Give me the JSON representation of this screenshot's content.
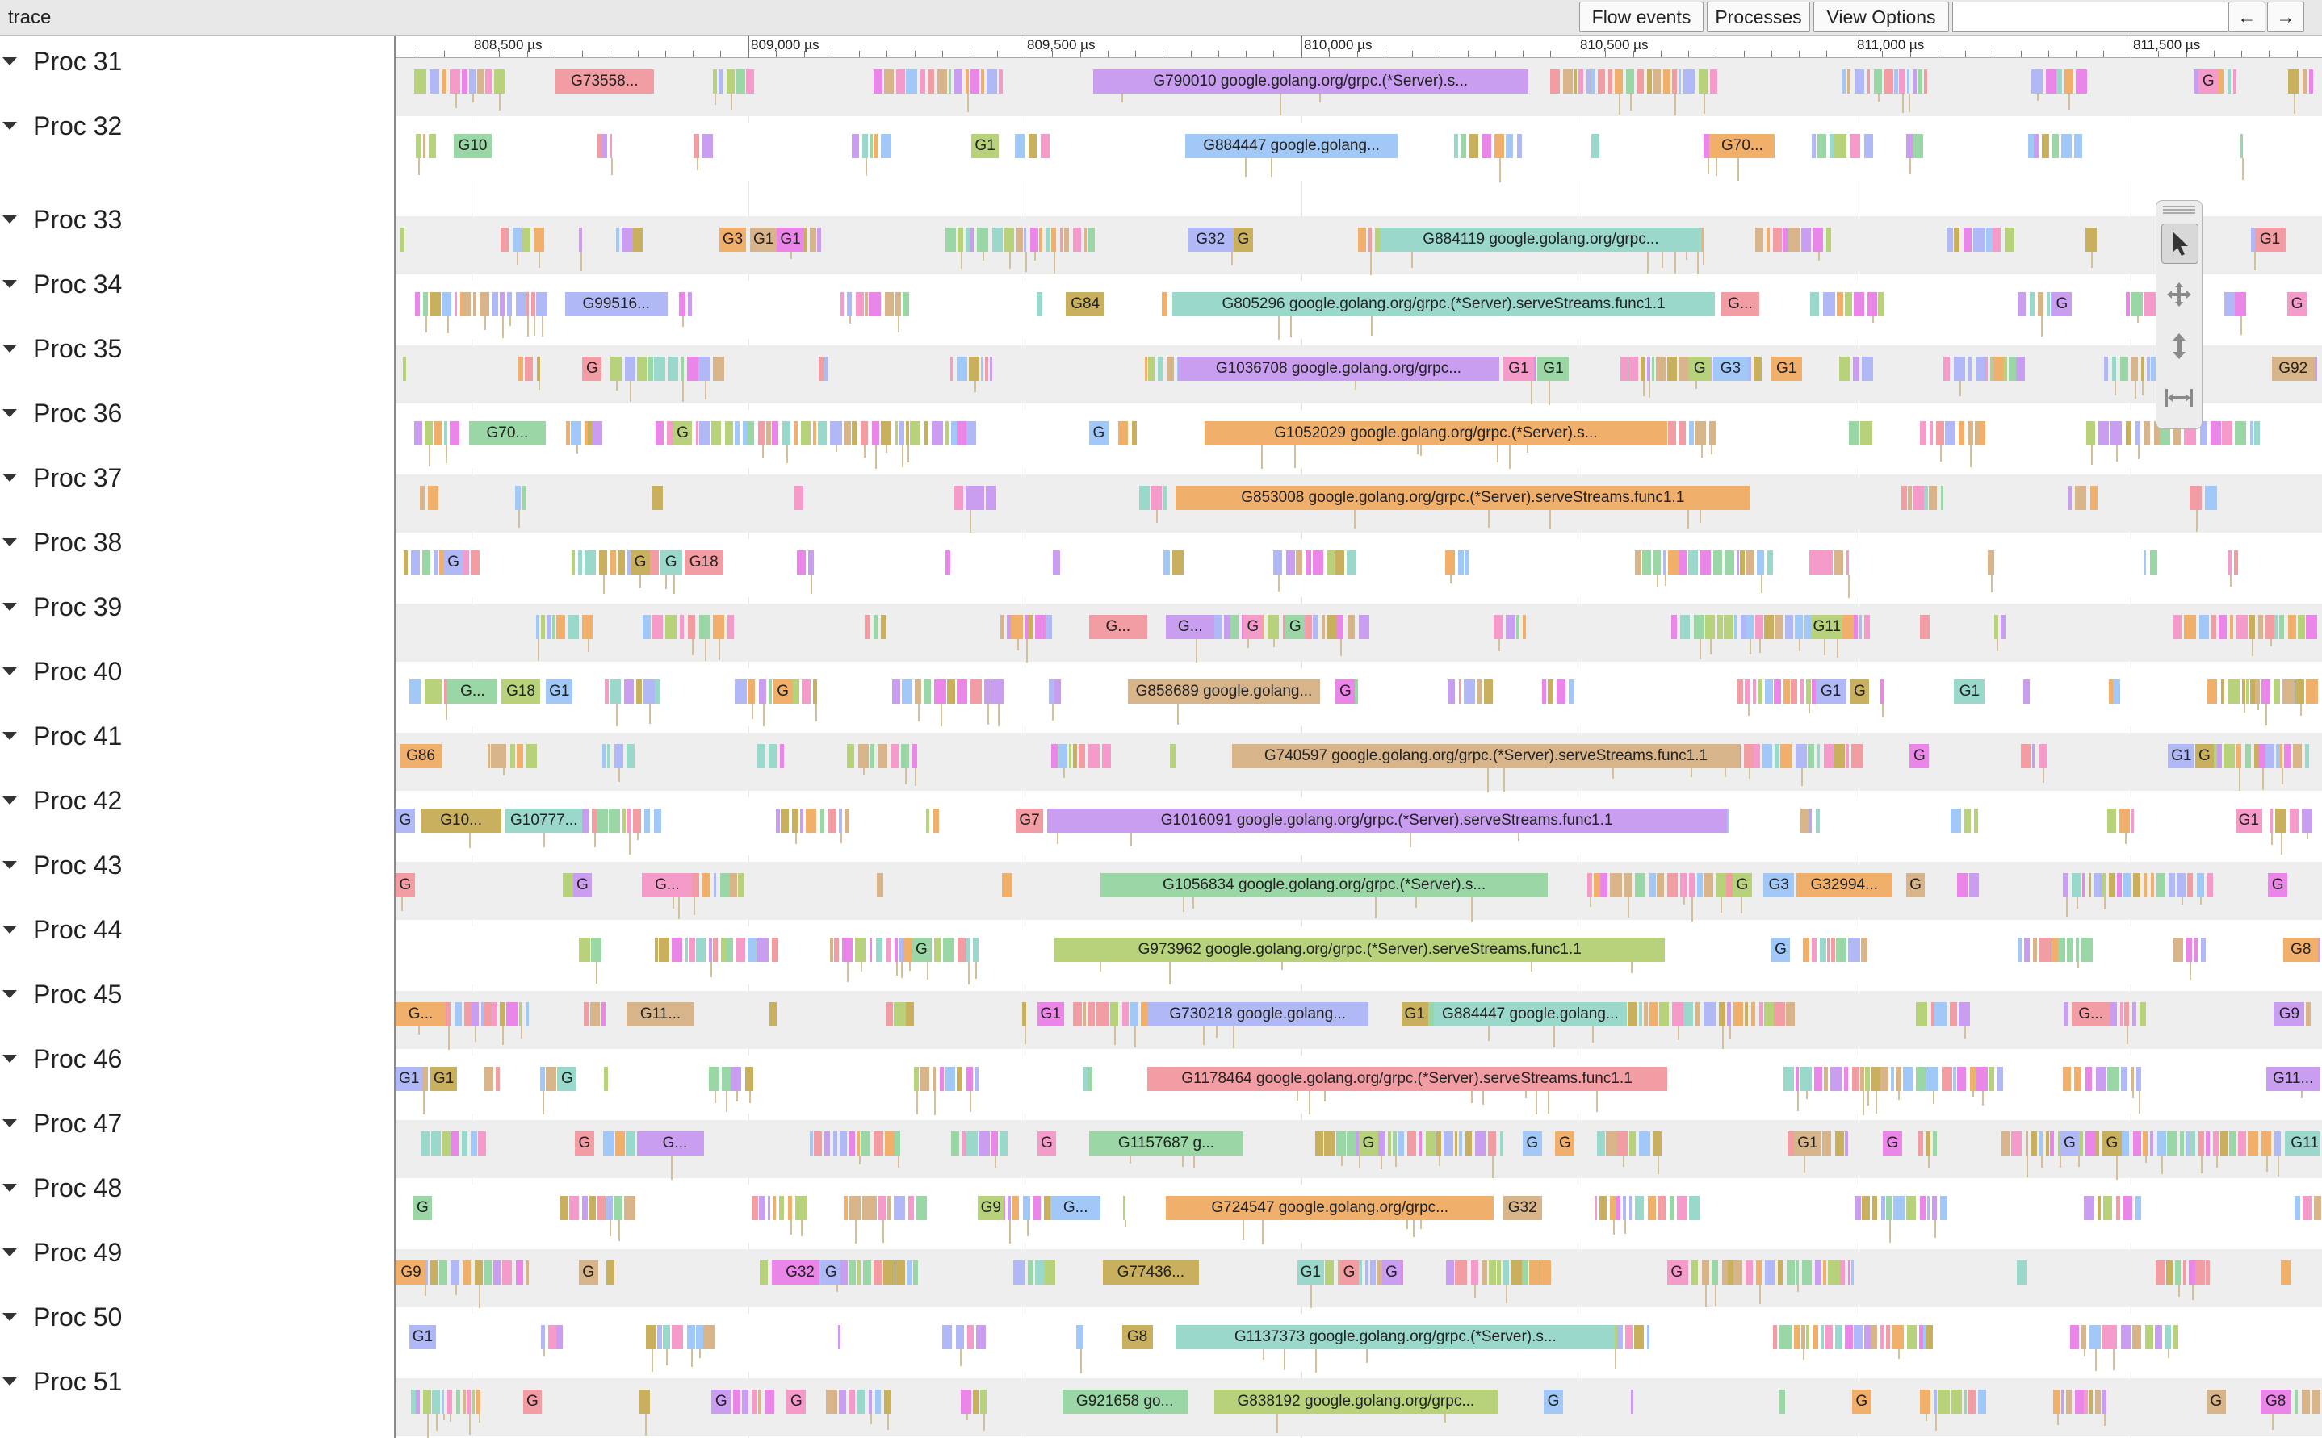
{
  "window": {
    "title": "trace"
  },
  "toolbar": {
    "flow_events": "Flow events",
    "processes": "Processes",
    "view_options": "View Options",
    "search_value": "",
    "back_arrow": "←",
    "forward_arrow": "→"
  },
  "ruler": {
    "ticks": [
      "808,500 µs",
      "809,000 µs",
      "809,500 µs",
      "810,000 µs",
      "810,500 µs",
      "811,000 µs",
      "811,500 µs"
    ]
  },
  "tools": [
    "select-icon",
    "pan-icon",
    "zoom-icon",
    "timing-icon"
  ],
  "slice_colors": [
    "#f29ca3",
    "#a1c8f7",
    "#c9b05f",
    "#9bd7a6",
    "#ea86e8",
    "#c99ef0",
    "#f0b06b",
    "#9ad8cc",
    "#b7d27a",
    "#b0b9f5",
    "#f59bc9",
    "#d8b48a"
  ],
  "processes": [
    {
      "name": "Proc 31",
      "labels": [
        {
          "t": "G73558...",
          "x": 0.083,
          "w": 0.051
        },
        {
          "t": "G790010 google.golang.org/grpc.(*Server).s...",
          "x": 0.362,
          "w": 0.226
        },
        {
          "t": "G",
          "x": 0.936,
          "w": 0.01
        }
      ]
    },
    {
      "name": "Proc 32",
      "labels": [
        {
          "t": "G10",
          "x": 0.03,
          "w": 0.02
        },
        {
          "t": "G1",
          "x": 0.299,
          "w": 0.014
        },
        {
          "t": "G884447 google.golang...",
          "x": 0.41,
          "w": 0.11
        },
        {
          "t": "G70...",
          "x": 0.682,
          "w": 0.034
        }
      ]
    },
    {
      "name": "Proc 33",
      "labels": [
        {
          "t": "G3",
          "x": 0.168,
          "w": 0.014
        },
        {
          "t": "G1",
          "x": 0.184,
          "w": 0.014
        },
        {
          "t": "G1",
          "x": 0.198,
          "w": 0.014
        },
        {
          "t": "G32",
          "x": 0.411,
          "w": 0.024
        },
        {
          "t": "G",
          "x": 0.435,
          "w": 0.01
        },
        {
          "t": "G884119 google.golang.org/grpc...",
          "x": 0.511,
          "w": 0.167
        },
        {
          "t": "G1",
          "x": 0.965,
          "w": 0.016
        }
      ]
    },
    {
      "name": "Proc 34",
      "labels": [
        {
          "t": "G99516...",
          "x": 0.088,
          "w": 0.053
        },
        {
          "t": "G84",
          "x": 0.348,
          "w": 0.02
        },
        {
          "t": "G805296 google.golang.org/grpc.(*Server).serveStreams.func1.1",
          "x": 0.403,
          "w": 0.282
        },
        {
          "t": "G...",
          "x": 0.688,
          "w": 0.02
        },
        {
          "t": "G",
          "x": 0.86,
          "w": 0.01
        },
        {
          "t": "G",
          "x": 0.982,
          "w": 0.01
        }
      ]
    },
    {
      "name": "Proc 35",
      "labels": [
        {
          "t": "G",
          "x": 0.097,
          "w": 0.01
        },
        {
          "t": "G1036708 google.golang.org/grpc...",
          "x": 0.406,
          "w": 0.167
        },
        {
          "t": "G1",
          "x": 0.575,
          "w": 0.016
        },
        {
          "t": "G1",
          "x": 0.593,
          "w": 0.016
        },
        {
          "t": "G",
          "x": 0.671,
          "w": 0.012
        },
        {
          "t": "G3",
          "x": 0.684,
          "w": 0.018
        },
        {
          "t": "G1",
          "x": 0.714,
          "w": 0.016
        },
        {
          "t": "G92",
          "x": 0.974,
          "w": 0.022
        }
      ]
    },
    {
      "name": "Proc 36",
      "labels": [
        {
          "t": "G70...",
          "x": 0.038,
          "w": 0.04
        },
        {
          "t": "G",
          "x": 0.144,
          "w": 0.01
        },
        {
          "t": "G",
          "x": 0.36,
          "w": 0.01
        },
        {
          "t": "G1052029 google.golang.org/grpc.(*Server).s...",
          "x": 0.42,
          "w": 0.24
        }
      ]
    },
    {
      "name": "Proc 37",
      "labels": [
        {
          "t": "G853008 google.golang.org/grpc.(*Server).serveStreams.func1.1",
          "x": 0.405,
          "w": 0.298
        }
      ]
    },
    {
      "name": "Proc 38",
      "labels": [
        {
          "t": "G",
          "x": 0.025,
          "w": 0.01
        },
        {
          "t": "G",
          "x": 0.122,
          "w": 0.01
        },
        {
          "t": "G",
          "x": 0.137,
          "w": 0.012
        },
        {
          "t": "G18",
          "x": 0.15,
          "w": 0.02
        }
      ]
    },
    {
      "name": "Proc 39",
      "labels": [
        {
          "t": "G...",
          "x": 0.36,
          "w": 0.03
        },
        {
          "t": "G...",
          "x": 0.4,
          "w": 0.025
        },
        {
          "t": "G",
          "x": 0.44,
          "w": 0.01
        },
        {
          "t": "G",
          "x": 0.462,
          "w": 0.01
        },
        {
          "t": "G11",
          "x": 0.735,
          "w": 0.016
        }
      ]
    },
    {
      "name": "Proc 40",
      "labels": [
        {
          "t": "G...",
          "x": 0.027,
          "w": 0.026
        },
        {
          "t": "G18",
          "x": 0.055,
          "w": 0.02
        },
        {
          "t": "G1",
          "x": 0.078,
          "w": 0.014
        },
        {
          "t": "G",
          "x": 0.196,
          "w": 0.01
        },
        {
          "t": "G858689 google.golang...",
          "x": 0.38,
          "w": 0.1
        },
        {
          "t": "G",
          "x": 0.488,
          "w": 0.01
        },
        {
          "t": "G1",
          "x": 0.737,
          "w": 0.016
        },
        {
          "t": "G",
          "x": 0.755,
          "w": 0.01
        },
        {
          "t": "G1",
          "x": 0.809,
          "w": 0.016
        }
      ]
    },
    {
      "name": "Proc 41",
      "labels": [
        {
          "t": "G86",
          "x": 0.002,
          "w": 0.022
        },
        {
          "t": "G740597 google.golang.org/grpc.(*Server).serveStreams.func1.1",
          "x": 0.434,
          "w": 0.264
        },
        {
          "t": "G",
          "x": 0.786,
          "w": 0.01
        },
        {
          "t": "G1",
          "x": 0.92,
          "w": 0.014
        },
        {
          "t": "G",
          "x": 0.934,
          "w": 0.01
        }
      ]
    },
    {
      "name": "Proc 42",
      "labels": [
        {
          "t": "G",
          "x": 0.0,
          "w": 0.01
        },
        {
          "t": "G10...",
          "x": 0.013,
          "w": 0.042
        },
        {
          "t": "G10777...",
          "x": 0.057,
          "w": 0.04
        },
        {
          "t": "G7",
          "x": 0.322,
          "w": 0.014
        },
        {
          "t": "G1016091 google.golang.org/grpc.(*Server).serveStreams.func1.1",
          "x": 0.338,
          "w": 0.353
        },
        {
          "t": "G1",
          "x": 0.955,
          "w": 0.014
        }
      ]
    },
    {
      "name": "Proc 43",
      "labels": [
        {
          "t": "G",
          "x": 0.0,
          "w": 0.01
        },
        {
          "t": "G",
          "x": 0.092,
          "w": 0.01
        },
        {
          "t": "G...",
          "x": 0.128,
          "w": 0.026
        },
        {
          "t": "G1056834 google.golang.org/grpc.(*Server).s...",
          "x": 0.366,
          "w": 0.232
        },
        {
          "t": "G",
          "x": 0.694,
          "w": 0.01
        },
        {
          "t": "G3",
          "x": 0.71,
          "w": 0.016
        },
        {
          "t": "G32994...",
          "x": 0.727,
          "w": 0.05
        },
        {
          "t": "G",
          "x": 0.784,
          "w": 0.01
        },
        {
          "t": "G",
          "x": 0.972,
          "w": 0.01
        }
      ]
    },
    {
      "name": "Proc 44",
      "labels": [
        {
          "t": "G",
          "x": 0.268,
          "w": 0.01
        },
        {
          "t": "G973962 google.golang.org/grpc.(*Server).serveStreams.func1.1",
          "x": 0.342,
          "w": 0.317
        },
        {
          "t": "G",
          "x": 0.714,
          "w": 0.01
        },
        {
          "t": "G8",
          "x": 0.98,
          "w": 0.018
        }
      ]
    },
    {
      "name": "Proc 45",
      "labels": [
        {
          "t": "G...",
          "x": 0.0,
          "w": 0.026
        },
        {
          "t": "G11...",
          "x": 0.12,
          "w": 0.035
        },
        {
          "t": "G1",
          "x": 0.333,
          "w": 0.014
        },
        {
          "t": "G730218 google.golang...",
          "x": 0.39,
          "w": 0.115
        },
        {
          "t": "G1",
          "x": 0.522,
          "w": 0.014
        },
        {
          "t": "G884447 google.golang...",
          "x": 0.539,
          "w": 0.1
        },
        {
          "t": "G...",
          "x": 0.87,
          "w": 0.02
        },
        {
          "t": "G9",
          "x": 0.975,
          "w": 0.016
        }
      ]
    },
    {
      "name": "Proc 46",
      "labels": [
        {
          "t": "G1",
          "x": 0.0,
          "w": 0.014
        },
        {
          "t": "G1",
          "x": 0.018,
          "w": 0.014
        },
        {
          "t": "G",
          "x": 0.084,
          "w": 0.01
        },
        {
          "t": "G1178464 google.golang.org/grpc.(*Server).serveStreams.func1.1",
          "x": 0.39,
          "w": 0.27
        },
        {
          "t": "G11...",
          "x": 0.971,
          "w": 0.028
        }
      ]
    },
    {
      "name": "Proc 47",
      "labels": [
        {
          "t": "G",
          "x": 0.093,
          "w": 0.01
        },
        {
          "t": "G...",
          "x": 0.13,
          "w": 0.03
        },
        {
          "t": "G",
          "x": 0.333,
          "w": 0.01
        },
        {
          "t": "G1157687 g...",
          "x": 0.36,
          "w": 0.08
        },
        {
          "t": "G",
          "x": 0.5,
          "w": 0.01
        },
        {
          "t": "G",
          "x": 0.585,
          "w": 0.01
        },
        {
          "t": "G",
          "x": 0.602,
          "w": 0.01
        },
        {
          "t": "G1",
          "x": 0.726,
          "w": 0.014
        },
        {
          "t": "G",
          "x": 0.772,
          "w": 0.01
        },
        {
          "t": "G",
          "x": 0.864,
          "w": 0.01
        },
        {
          "t": "G",
          "x": 0.886,
          "w": 0.01
        },
        {
          "t": "G11",
          "x": 0.983,
          "w": 0.016
        }
      ]
    },
    {
      "name": "Proc 48",
      "labels": [
        {
          "t": "G",
          "x": 0.009,
          "w": 0.01
        },
        {
          "t": "G9",
          "x": 0.302,
          "w": 0.014
        },
        {
          "t": "G...",
          "x": 0.34,
          "w": 0.026
        },
        {
          "t": "G724547 google.golang.org/grpc...",
          "x": 0.4,
          "w": 0.17
        },
        {
          "t": "G32",
          "x": 0.575,
          "w": 0.02
        }
      ]
    },
    {
      "name": "Proc 49",
      "labels": [
        {
          "t": "G9",
          "x": 0.0,
          "w": 0.016
        },
        {
          "t": "G",
          "x": 0.095,
          "w": 0.01
        },
        {
          "t": "G32",
          "x": 0.2,
          "w": 0.02
        },
        {
          "t": "G",
          "x": 0.221,
          "w": 0.01
        },
        {
          "t": "G77436...",
          "x": 0.367,
          "w": 0.05
        },
        {
          "t": "G1",
          "x": 0.468,
          "w": 0.014
        },
        {
          "t": "G",
          "x": 0.49,
          "w": 0.01
        },
        {
          "t": "G",
          "x": 0.512,
          "w": 0.01
        },
        {
          "t": "G",
          "x": 0.66,
          "w": 0.01
        }
      ]
    },
    {
      "name": "Proc 50",
      "labels": [
        {
          "t": "G1",
          "x": 0.007,
          "w": 0.014
        },
        {
          "t": "G8",
          "x": 0.377,
          "w": 0.016
        },
        {
          "t": "G1137373 google.golang.org/grpc.(*Server).s...",
          "x": 0.405,
          "w": 0.228
        }
      ]
    },
    {
      "name": "Proc 51",
      "labels": [
        {
          "t": "G",
          "x": 0.066,
          "w": 0.01
        },
        {
          "t": "G",
          "x": 0.164,
          "w": 0.01
        },
        {
          "t": "G",
          "x": 0.203,
          "w": 0.01
        },
        {
          "t": "G921658 go...",
          "x": 0.346,
          "w": 0.065
        },
        {
          "t": "G838192 google.golang.org/grpc...",
          "x": 0.425,
          "w": 0.147
        },
        {
          "t": "G",
          "x": 0.596,
          "w": 0.01
        },
        {
          "t": "G",
          "x": 0.756,
          "w": 0.01
        },
        {
          "t": "G",
          "x": 0.94,
          "w": 0.01
        },
        {
          "t": "G8",
          "x": 0.968,
          "w": 0.016
        }
      ]
    }
  ]
}
